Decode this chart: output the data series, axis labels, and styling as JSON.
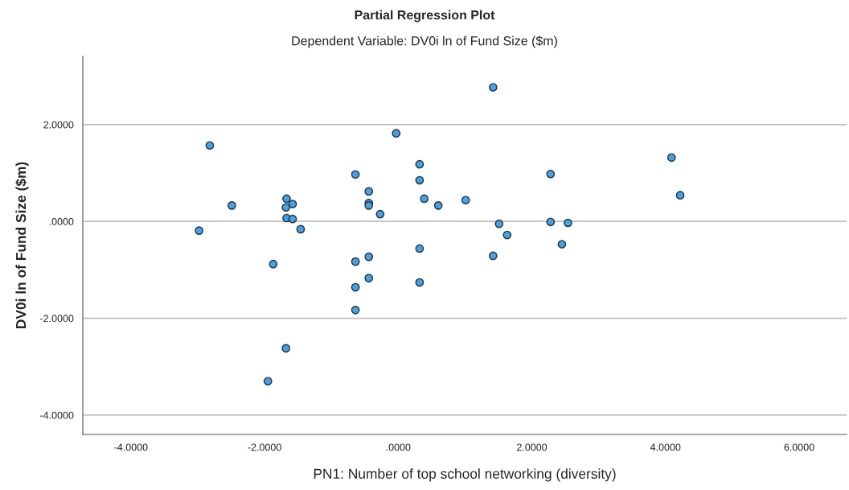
{
  "chart_data": {
    "type": "scatter",
    "title": "Partial Regression Plot",
    "subtitle": "Dependent Variable: DV0i ln of Fund Size ($m)",
    "xlabel": "PN1: Number of top school networking (diversity)",
    "ylabel": "DV0i ln of Fund Size ($m)",
    "series": [
      {
        "color": "#4a9fdd",
        "x": [
          -2.82,
          -2.49,
          -2.98,
          -1.67,
          -1.58,
          -1.68,
          -1.67,
          -1.58,
          -1.46,
          -1.87,
          -0.64,
          -0.44,
          -0.44,
          -0.44,
          -0.27,
          -0.03,
          0.32,
          0.32,
          0.39,
          0.6,
          -0.64,
          -0.44,
          0.32,
          -0.44,
          0.32,
          -0.64,
          -0.64,
          -1.68,
          -1.95,
          1.42,
          1.01,
          1.51,
          1.63,
          1.42,
          2.28,
          2.28,
          2.54,
          2.45,
          4.09,
          4.22
        ],
        "values": [
          1.57,
          0.33,
          -0.19,
          0.47,
          0.36,
          0.29,
          0.07,
          0.05,
          -0.16,
          -0.88,
          0.97,
          0.62,
          0.38,
          0.33,
          0.15,
          1.82,
          1.18,
          0.85,
          0.47,
          0.33,
          -0.83,
          -0.73,
          -0.56,
          -1.17,
          -1.26,
          -1.36,
          -1.83,
          -2.62,
          -3.3,
          2.77,
          0.44,
          -0.05,
          -0.28,
          -0.71,
          0.98,
          -0.01,
          -0.03,
          -0.47,
          1.32,
          0.54
        ]
      }
    ],
    "xlim": [
      -4.72,
      6.71
    ],
    "ylim": [
      -4.4,
      3.41
    ],
    "xticks": [
      {
        "value": -4,
        "label": "-4.0000"
      },
      {
        "value": -2,
        "label": "-2.0000"
      },
      {
        "value": 0,
        "label": ".0000"
      },
      {
        "value": 2,
        "label": "2.0000"
      },
      {
        "value": 4,
        "label": "4.0000"
      },
      {
        "value": 6,
        "label": "6.0000"
      }
    ],
    "yticks": [
      {
        "value": -4,
        "label": "-4.0000"
      },
      {
        "value": -2,
        "label": "-2.0000"
      },
      {
        "value": 0,
        "label": ".0000"
      },
      {
        "value": 2,
        "label": "2.0000"
      }
    ],
    "grid": "y",
    "marker": "circle"
  }
}
